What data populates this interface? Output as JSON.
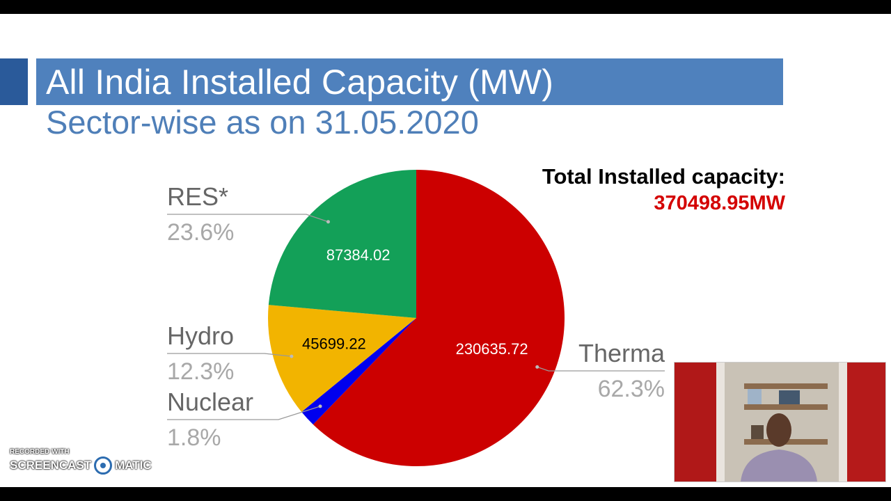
{
  "header": {
    "title": "All India Installed Capacity (MW)",
    "subtitle": "Sector-wise as on 31.05.2020"
  },
  "summary": {
    "total_label": "Total Installed capacity:",
    "total_value": "370498.95MW"
  },
  "chart_data": {
    "type": "pie",
    "slices": [
      {
        "name": "Therma",
        "value": 230635.72,
        "value_label": "230635.72",
        "percent_label": "62.3%",
        "color": "#cc0000",
        "label_color": "#ffffff"
      },
      {
        "name": "Nuclear",
        "value": 6780.0,
        "value_label": "",
        "percent_label": "1.8%",
        "color": "#0000ee",
        "label_color": "#ffffff"
      },
      {
        "name": "Hydro",
        "value": 45699.22,
        "value_label": "45699.22",
        "percent_label": "12.3%",
        "color": "#f2b400",
        "label_color": "#000000"
      },
      {
        "name": "RES*",
        "value": 87384.02,
        "value_label": "87384.02",
        "percent_label": "23.6%",
        "color": "#13a058",
        "label_color": "#ffffff"
      }
    ]
  },
  "watermark": {
    "line1": "RECORDED WITH",
    "line2a": "SCREENCAST",
    "line2b": "MATIC"
  },
  "colors": {
    "title_band": "#4f81bd",
    "subtitle": "#4f7fb8",
    "total_value": "#d40000"
  }
}
